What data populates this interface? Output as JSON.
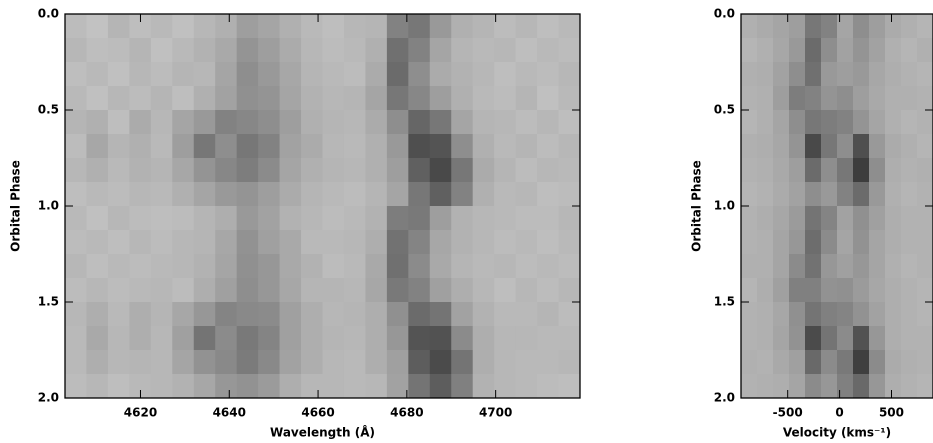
{
  "chart_data": [
    {
      "type": "heatmap",
      "xlabel": "Wavelength (Å)",
      "ylabel": "Orbital Phase",
      "xlim": [
        4603,
        4719
      ],
      "ylim": [
        0,
        2
      ],
      "y_inverted": true,
      "xticks": [
        4620,
        4640,
        4660,
        4680,
        4700
      ],
      "yticks": [
        {
          "value": 0,
          "label": "0.0"
        },
        {
          "value": 0.5,
          "label": "0.5"
        },
        {
          "value": 1,
          "label": "1.0"
        },
        {
          "value": 1.5,
          "label": "1.5"
        },
        {
          "value": 2,
          "label": "2.0"
        }
      ],
      "z": [
        [
          25,
          22,
          28,
          24,
          26,
          23,
          27,
          30,
          38,
          35,
          30,
          26,
          24,
          27,
          28,
          50,
          55,
          40,
          30,
          28,
          25,
          27,
          24,
          26
        ],
        [
          27,
          24,
          25,
          28,
          23,
          26,
          29,
          33,
          42,
          38,
          32,
          27,
          25,
          26,
          30,
          58,
          50,
          35,
          28,
          26,
          27,
          24,
          26,
          25
        ],
        [
          24,
          26,
          23,
          27,
          25,
          28,
          27,
          35,
          45,
          40,
          34,
          28,
          26,
          25,
          32,
          60,
          45,
          32,
          29,
          27,
          24,
          26,
          25,
          27
        ],
        [
          26,
          23,
          27,
          25,
          28,
          24,
          30,
          36,
          44,
          42,
          35,
          29,
          27,
          28,
          35,
          55,
          48,
          38,
          30,
          26,
          25,
          28,
          23,
          26
        ],
        [
          28,
          30,
          24,
          32,
          27,
          35,
          40,
          50,
          48,
          45,
          38,
          30,
          28,
          27,
          32,
          45,
          62,
          55,
          35,
          28,
          27,
          25,
          27,
          24
        ],
        [
          25,
          34,
          28,
          30,
          26,
          38,
          55,
          45,
          55,
          50,
          36,
          32,
          27,
          26,
          30,
          40,
          72,
          70,
          45,
          30,
          26,
          28,
          25,
          27
        ],
        [
          27,
          30,
          26,
          29,
          28,
          34,
          42,
          48,
          52,
          46,
          35,
          30,
          28,
          27,
          30,
          38,
          65,
          75,
          55,
          32,
          28,
          25,
          27,
          26
        ],
        [
          24,
          26,
          25,
          27,
          26,
          30,
          35,
          40,
          42,
          38,
          32,
          28,
          26,
          25,
          28,
          35,
          55,
          65,
          50,
          30,
          26,
          27,
          24,
          25
        ],
        [
          26,
          23,
          27,
          25,
          24,
          25,
          28,
          31,
          40,
          36,
          29,
          27,
          25,
          26,
          29,
          52,
          54,
          38,
          29,
          27,
          26,
          25,
          25,
          27
        ],
        [
          25,
          26,
          24,
          27,
          25,
          27,
          28,
          34,
          43,
          37,
          33,
          26,
          26,
          27,
          31,
          57,
          49,
          34,
          29,
          27,
          25,
          26,
          24,
          26
        ],
        [
          27,
          24,
          26,
          25,
          26,
          27,
          29,
          35,
          44,
          41,
          33,
          29,
          25,
          26,
          33,
          58,
          46,
          33,
          28,
          26,
          27,
          25,
          26,
          25
        ],
        [
          25,
          27,
          25,
          26,
          27,
          25,
          31,
          37,
          45,
          41,
          34,
          28,
          28,
          27,
          34,
          54,
          50,
          37,
          31,
          27,
          24,
          27,
          25,
          27
        ],
        [
          27,
          31,
          26,
          31,
          28,
          34,
          41,
          49,
          47,
          46,
          37,
          31,
          27,
          28,
          31,
          44,
          60,
          56,
          36,
          29,
          26,
          26,
          28,
          25
        ],
        [
          26,
          33,
          27,
          31,
          27,
          37,
          56,
          46,
          54,
          49,
          37,
          31,
          28,
          27,
          31,
          41,
          70,
          71,
          46,
          31,
          27,
          27,
          26,
          26
        ],
        [
          26,
          31,
          27,
          28,
          27,
          35,
          43,
          47,
          53,
          47,
          36,
          31,
          27,
          26,
          31,
          37,
          66,
          74,
          56,
          31,
          27,
          26,
          26,
          27
        ],
        [
          25,
          27,
          24,
          26,
          27,
          29,
          34,
          41,
          43,
          39,
          31,
          27,
          27,
          26,
          27,
          36,
          56,
          66,
          51,
          29,
          27,
          26,
          25,
          24
        ]
      ]
    },
    {
      "type": "heatmap",
      "xlabel": "Velocity (kms⁻¹)",
      "ylabel": "Orbital Phase",
      "xlim": [
        -950,
        900
      ],
      "ylim": [
        0,
        2
      ],
      "y_inverted": true,
      "xticks": [
        -500,
        0,
        500
      ],
      "yticks": [
        {
          "value": 0,
          "label": "0.0"
        },
        {
          "value": 0.5,
          "label": "0.5"
        },
        {
          "value": 1,
          "label": "1.0"
        },
        {
          "value": 1.5,
          "label": "1.5"
        },
        {
          "value": 2,
          "label": "2.0"
        }
      ],
      "z": [
        [
          30,
          32,
          35,
          38,
          55,
          50,
          35,
          45,
          38,
          32,
          30,
          28
        ],
        [
          28,
          30,
          34,
          40,
          60,
          45,
          36,
          42,
          36,
          30,
          28,
          30
        ],
        [
          30,
          31,
          36,
          45,
          58,
          40,
          38,
          40,
          34,
          31,
          29,
          28
        ],
        [
          29,
          30,
          38,
          52,
          50,
          42,
          45,
          38,
          33,
          30,
          30,
          29
        ],
        [
          28,
          30,
          35,
          45,
          55,
          52,
          50,
          42,
          35,
          30,
          28,
          29
        ],
        [
          30,
          31,
          34,
          42,
          75,
          55,
          45,
          72,
          40,
          32,
          30,
          28
        ],
        [
          29,
          30,
          33,
          38,
          60,
          45,
          55,
          80,
          45,
          31,
          29,
          30
        ],
        [
          28,
          29,
          32,
          36,
          45,
          40,
          50,
          60,
          40,
          30,
          28,
          29
        ],
        [
          29,
          31,
          34,
          39,
          56,
          49,
          36,
          44,
          37,
          31,
          29,
          29
        ],
        [
          29,
          30,
          35,
          41,
          59,
          46,
          35,
          43,
          35,
          31,
          29,
          29
        ],
        [
          30,
          30,
          35,
          46,
          57,
          41,
          37,
          41,
          35,
          30,
          28,
          29
        ],
        [
          28,
          31,
          37,
          51,
          51,
          43,
          44,
          39,
          34,
          31,
          29,
          28
        ],
        [
          29,
          30,
          34,
          44,
          56,
          51,
          49,
          43,
          36,
          31,
          29,
          28
        ],
        [
          29,
          30,
          35,
          43,
          74,
          56,
          46,
          71,
          41,
          31,
          29,
          29
        ],
        [
          30,
          29,
          33,
          37,
          61,
          46,
          54,
          79,
          46,
          32,
          30,
          29
        ],
        [
          29,
          30,
          31,
          35,
          46,
          41,
          51,
          61,
          41,
          31,
          29,
          28
        ]
      ]
    }
  ]
}
